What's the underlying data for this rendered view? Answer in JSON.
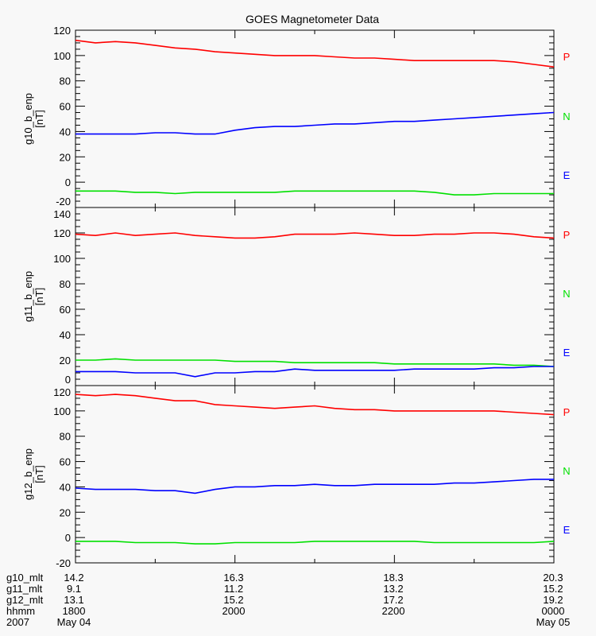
{
  "chart_data": {
    "type": "line",
    "title": "GOES Magnetometer Data",
    "x": {
      "unit": "hours since 2007-05-04 18:00",
      "range": [
        0,
        6
      ],
      "sample_step_hours": 0.25,
      "major_ticks": [
        0,
        2,
        4,
        6
      ],
      "minor_ticks": [
        1,
        3,
        5
      ]
    },
    "colors": {
      "P": "#ff0000",
      "N": "#00e000",
      "E": "#0000ff"
    },
    "legend": [
      {
        "label": "P",
        "color": "#ff0000"
      },
      {
        "label": "N",
        "color": "#00e000"
      },
      {
        "label": "E",
        "color": "#0000ff"
      }
    ],
    "panels": [
      {
        "ylabel": "g10_b_enp",
        "yunit": "[nT]",
        "ylim": [
          -20,
          120
        ],
        "yticks": [
          "-20",
          "0",
          "20",
          "40",
          "60",
          "80",
          "100",
          "120"
        ],
        "series": [
          {
            "name": "P",
            "values": [
              112,
              110,
              111,
              110,
              108,
              106,
              105,
              103,
              102,
              101,
              100,
              100,
              100,
              99,
              98,
              98,
              97,
              96,
              96,
              96,
              96,
              96,
              95,
              93,
              91
            ]
          },
          {
            "name": "E",
            "values": [
              38,
              38,
              38,
              38,
              39,
              39,
              38,
              38,
              41,
              43,
              44,
              44,
              45,
              46,
              46,
              47,
              48,
              48,
              49,
              50,
              51,
              52,
              53,
              54,
              55
            ]
          },
          {
            "name": "N",
            "values": [
              -7,
              -7,
              -7,
              -8,
              -8,
              -9,
              -8,
              -8,
              -8,
              -8,
              -8,
              -7,
              -7,
              -7,
              -7,
              -7,
              -7,
              -7,
              -8,
              -10,
              -10,
              -9,
              -9,
              -9,
              -9
            ]
          }
        ]
      },
      {
        "ylabel": "g11_b_enp",
        "yunit": "[nT]",
        "ylim": [
          0,
          140
        ],
        "yticks": [
          "0",
          "20",
          "40",
          "60",
          "80",
          "100",
          "120",
          "140"
        ],
        "series": [
          {
            "name": "P",
            "values": [
              119,
              118,
              120,
              118,
              119,
              120,
              118,
              117,
              116,
              116,
              117,
              119,
              119,
              119,
              120,
              119,
              118,
              118,
              119,
              119,
              120,
              120,
              119,
              117,
              116
            ]
          },
          {
            "name": "N",
            "values": [
              20,
              20,
              21,
              20,
              20,
              20,
              20,
              20,
              19,
              19,
              19,
              18,
              18,
              18,
              18,
              18,
              17,
              17,
              17,
              17,
              17,
              17,
              16,
              16,
              15
            ]
          },
          {
            "name": "E",
            "values": [
              11,
              11,
              11,
              10,
              10,
              10,
              7,
              10,
              10,
              11,
              11,
              13,
              12,
              12,
              12,
              12,
              12,
              13,
              13,
              13,
              13,
              14,
              14,
              15,
              15
            ]
          }
        ]
      },
      {
        "ylabel": "g12_b_enp",
        "yunit": "[nT]",
        "ylim": [
          -20,
          120
        ],
        "yticks": [
          "-20",
          "0",
          "20",
          "40",
          "60",
          "80",
          "100",
          "120"
        ],
        "series": [
          {
            "name": "P",
            "values": [
              113,
              112,
              113,
              112,
              110,
              108,
              108,
              105,
              104,
              103,
              102,
              103,
              104,
              102,
              101,
              101,
              100,
              100,
              100,
              100,
              100,
              100,
              99,
              98,
              97
            ]
          },
          {
            "name": "E",
            "values": [
              39,
              38,
              38,
              38,
              37,
              37,
              35,
              38,
              40,
              40,
              41,
              41,
              42,
              41,
              41,
              42,
              42,
              42,
              42,
              43,
              43,
              44,
              45,
              46,
              46
            ]
          },
          {
            "name": "N",
            "values": [
              -3,
              -3,
              -3,
              -4,
              -4,
              -4,
              -5,
              -5,
              -4,
              -4,
              -4,
              -4,
              -3,
              -3,
              -3,
              -3,
              -3,
              -3,
              -4,
              -4,
              -4,
              -4,
              -4,
              -4,
              -3
            ]
          }
        ]
      }
    ],
    "time_axis_rows": [
      {
        "label": "g10_mlt",
        "values": [
          "14.2",
          "16.3",
          "18.3",
          "20.3"
        ]
      },
      {
        "label": "g11_mlt",
        "values": [
          "9.1",
          "11.2",
          "13.2",
          "15.2"
        ]
      },
      {
        "label": "g12_mlt",
        "values": [
          "13.1",
          "15.2",
          "17.2",
          "19.2"
        ]
      },
      {
        "label": "hhmm",
        "values": [
          "1800",
          "2000",
          "2200",
          "0000"
        ]
      },
      {
        "label": "2007",
        "values": [
          "May 04",
          "",
          "",
          "May 05"
        ]
      }
    ]
  }
}
